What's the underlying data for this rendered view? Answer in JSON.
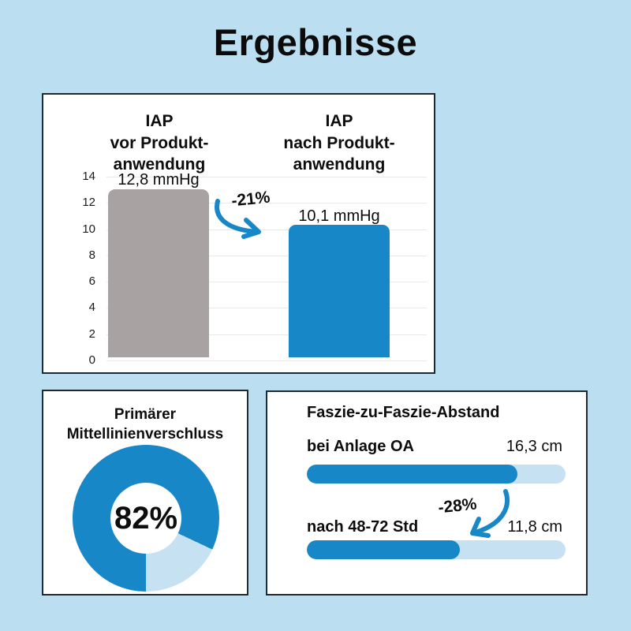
{
  "page": {
    "title": "Ergebnisse"
  },
  "colors": {
    "background": "#bcdef1",
    "accent_blue": "#1787c7",
    "light_blue": "#c6e1f2",
    "bar_gray": "#a8a2a3",
    "card_border": "#1c2a34",
    "grid": "#e9e9ec",
    "text": "#0d0d0d"
  },
  "chart_data": [
    {
      "type": "bar",
      "categories": [
        "IAP\nvor Produkt-\nanwendung",
        "IAP\nnach Produkt-\nanwendung"
      ],
      "values": [
        12.8,
        10.1
      ],
      "value_labels": [
        "12,8 mmHg",
        "10,1 mmHg"
      ],
      "unit": "mmHg",
      "change_label": "-21%",
      "ylim": [
        0,
        14
      ],
      "yticks": [
        0,
        2,
        4,
        6,
        8,
        10,
        12,
        14
      ],
      "grid": true,
      "bar_colors": [
        "#a8a2a3",
        "#1787c7"
      ]
    },
    {
      "type": "pie",
      "title": "Primärer\nMittellinienverschluss",
      "values": [
        82,
        18
      ],
      "center_label": "82%",
      "slice_colors": [
        "#1787c7",
        "#c6e1f2"
      ],
      "donut": true
    },
    {
      "type": "bar",
      "orientation": "horizontal",
      "title": "Faszie-zu-Faszie-Abstand",
      "rows": [
        {
          "label": "bei Anlage OA",
          "value": 16.3,
          "value_label": "16,3 cm"
        },
        {
          "label": "nach 48-72 Std",
          "value": 11.8,
          "value_label": "11,8 cm"
        }
      ],
      "change_label": "-28%",
      "xmax": 20,
      "fill_color": "#1787c7",
      "track_color": "#c6e1f2"
    }
  ]
}
